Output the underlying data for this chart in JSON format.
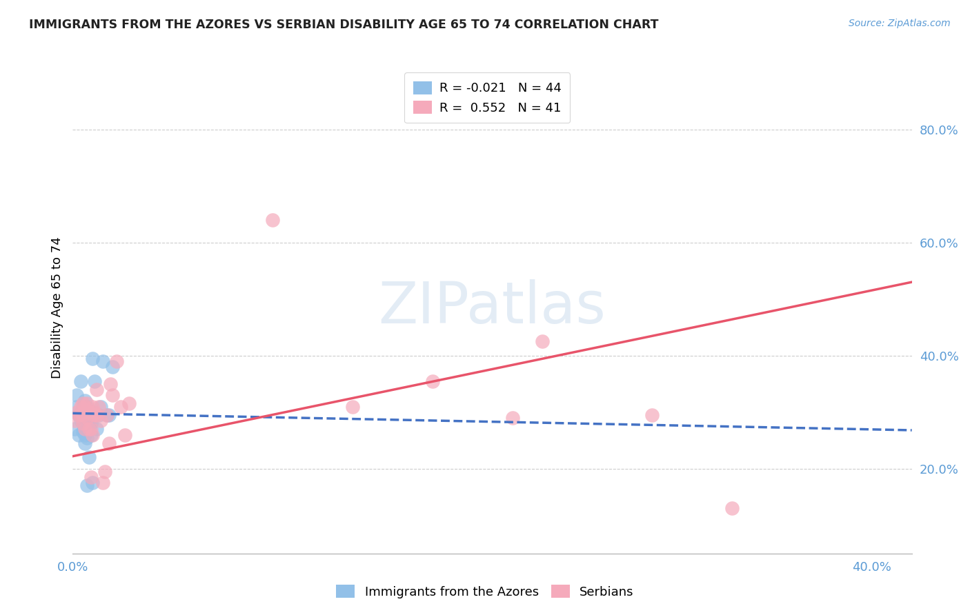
{
  "title": "IMMIGRANTS FROM THE AZORES VS SERBIAN DISABILITY AGE 65 TO 74 CORRELATION CHART",
  "source": "Source: ZipAtlas.com",
  "ylabel": "Disability Age 65 to 74",
  "yticks": [
    "20.0%",
    "40.0%",
    "60.0%",
    "80.0%"
  ],
  "ytick_values": [
    0.2,
    0.4,
    0.6,
    0.8
  ],
  "xtick_labels": [
    "0.0%",
    "40.0%"
  ],
  "xtick_positions": [
    0.0,
    0.4
  ],
  "xlim": [
    0.0,
    0.42
  ],
  "ylim": [
    0.05,
    0.92
  ],
  "blue_color": "#92C0E8",
  "pink_color": "#F5AABB",
  "blue_line_color": "#4472C4",
  "pink_line_color": "#E8546A",
  "azores_x": [
    0.001,
    0.002,
    0.002,
    0.003,
    0.003,
    0.004,
    0.004,
    0.004,
    0.005,
    0.005,
    0.005,
    0.005,
    0.005,
    0.006,
    0.006,
    0.006,
    0.006,
    0.006,
    0.006,
    0.006,
    0.007,
    0.007,
    0.007,
    0.007,
    0.007,
    0.007,
    0.008,
    0.008,
    0.008,
    0.008,
    0.009,
    0.009,
    0.009,
    0.01,
    0.01,
    0.011,
    0.011,
    0.012,
    0.013,
    0.014,
    0.015,
    0.017,
    0.018,
    0.02
  ],
  "azores_y": [
    0.27,
    0.31,
    0.33,
    0.295,
    0.26,
    0.355,
    0.3,
    0.285,
    0.265,
    0.3,
    0.28,
    0.31,
    0.295,
    0.245,
    0.26,
    0.275,
    0.285,
    0.295,
    0.305,
    0.32,
    0.17,
    0.255,
    0.28,
    0.295,
    0.3,
    0.31,
    0.22,
    0.28,
    0.29,
    0.3,
    0.26,
    0.28,
    0.3,
    0.175,
    0.395,
    0.295,
    0.355,
    0.27,
    0.295,
    0.31,
    0.39,
    0.295,
    0.295,
    0.38
  ],
  "serbian_x": [
    0.001,
    0.002,
    0.003,
    0.004,
    0.005,
    0.005,
    0.005,
    0.006,
    0.006,
    0.007,
    0.007,
    0.008,
    0.008,
    0.009,
    0.009,
    0.01,
    0.01,
    0.01,
    0.011,
    0.011,
    0.012,
    0.012,
    0.013,
    0.014,
    0.015,
    0.016,
    0.017,
    0.018,
    0.019,
    0.02,
    0.022,
    0.024,
    0.026,
    0.028,
    0.1,
    0.14,
    0.18,
    0.22,
    0.235,
    0.29,
    0.33
  ],
  "serbian_y": [
    0.285,
    0.3,
    0.295,
    0.31,
    0.28,
    0.295,
    0.315,
    0.27,
    0.31,
    0.29,
    0.315,
    0.3,
    0.27,
    0.185,
    0.27,
    0.26,
    0.295,
    0.31,
    0.3,
    0.295,
    0.34,
    0.295,
    0.31,
    0.285,
    0.175,
    0.195,
    0.295,
    0.245,
    0.35,
    0.33,
    0.39,
    0.31,
    0.26,
    0.315,
    0.64,
    0.31,
    0.355,
    0.29,
    0.425,
    0.295,
    0.13
  ],
  "azores_trend_x": [
    0.0,
    0.42
  ],
  "azores_trend_y": [
    0.298,
    0.268
  ],
  "serbian_trend_x": [
    0.0,
    0.42
  ],
  "serbian_trend_y": [
    0.222,
    0.53
  ],
  "legend_labels": [
    "R = -0.021   N = 44",
    "R =  0.552   N = 41"
  ],
  "bottom_legend_labels": [
    "Immigrants from the Azores",
    "Serbians"
  ]
}
